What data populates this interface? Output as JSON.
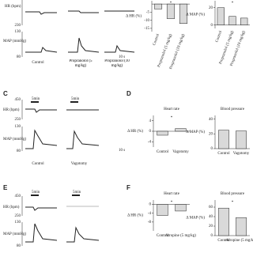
{
  "panels": {
    "a": {
      "hr_axis": "HR (bpm)",
      "hr_ticks": [
        230
      ],
      "map_axis": "MAP (mmHg)",
      "map_ticks": [
        130,
        80
      ],
      "conditions": [
        "Control",
        "Propranolol (5 mg/kg)",
        "Propranolol (10 mg/kg)"
      ],
      "scale": "10 s"
    },
    "c": {
      "letter": "C",
      "marker": "5min",
      "hr_axis": "HR (bpm)",
      "hr_ticks": [
        450,
        250
      ],
      "map_axis": "MAP (mmHg)",
      "map_ticks": [
        130,
        80
      ],
      "conditions": [
        "Control",
        "Vagotomy"
      ],
      "scale": "10 s"
    },
    "d": {
      "letter": "D"
    },
    "e": {
      "letter": "E",
      "marker": "5min",
      "hr_axis": "HR (bpm)",
      "hr_ticks": [
        450,
        250
      ],
      "map_axis": "MAP (mmHg)",
      "map_ticks": [
        130,
        80
      ]
    },
    "f": {
      "letter": "F"
    }
  },
  "chart_data": [
    {
      "type": "bar",
      "ylabel": "Δ HR (%)",
      "categories": [
        "Control",
        "Propranolol (5 mg/kg)",
        "Propranolol (10 mg/kg)"
      ],
      "values": [
        -3,
        -9,
        -12
      ],
      "ylim": [
        -17,
        2
      ],
      "yticks": [
        -5,
        -10,
        -15
      ],
      "color": "#d9d9d9",
      "annotation": "*"
    },
    {
      "type": "bar",
      "ylabel": "Δ MAP (%)",
      "categories": [
        "Control",
        "Propranolol (5 mg/kg)",
        "Propranolol (10 mg/kg)"
      ],
      "values": [
        20,
        10,
        8
      ],
      "ylim": [
        -4,
        28
      ],
      "yticks": [
        0,
        20
      ],
      "color": "#d9d9d9",
      "annotation": "*"
    },
    {
      "type": "bar",
      "title": "Heart rate",
      "ylabel": "Δ HR (%)",
      "categories": [
        "Control",
        "Vagotomy"
      ],
      "values": [
        -1.5,
        1
      ],
      "ylim": [
        -6,
        6
      ],
      "yticks": [
        4,
        0,
        -4
      ],
      "color": "#d9d9d9",
      "annotation": "*"
    },
    {
      "type": "bar",
      "title": "Blood pressure",
      "ylabel": "Δ MAP (%)",
      "categories": [
        "Control",
        "Vagotomy"
      ],
      "values": [
        25,
        24
      ],
      "ylim": [
        0,
        45
      ],
      "yticks": [
        0,
        20,
        40
      ],
      "color": "#d9d9d9"
    },
    {
      "type": "bar",
      "title": "Heart rate",
      "ylabel": "Δ HR (%)",
      "categories": [
        "Control",
        "Atropine (5 mg/kg)"
      ],
      "values": [
        -5,
        -3
      ],
      "ylim": [
        -12,
        2
      ],
      "yticks": [
        0,
        -4,
        -8
      ],
      "color": "#d9d9d9",
      "annotation": "*"
    },
    {
      "type": "bar",
      "title": "Blood pressure",
      "ylabel": "Δ MAP (%)",
      "categories": [
        "Control",
        "Atropine (5 mg/kg)"
      ],
      "values": [
        58,
        38
      ],
      "ylim": [
        0,
        75
      ],
      "yticks": [
        0,
        20,
        40,
        60
      ],
      "color": "#d9d9d9",
      "annotation": "*"
    }
  ]
}
